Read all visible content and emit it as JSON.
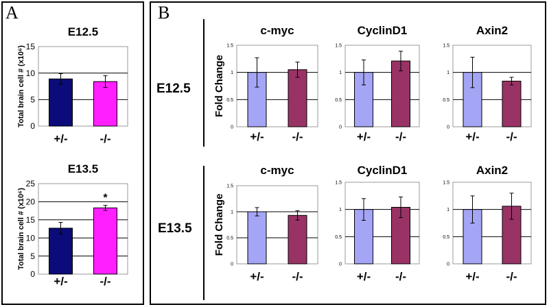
{
  "panels": {
    "a_label": "A",
    "b_label": "B"
  },
  "rows": {
    "r1": "E12.5",
    "r2": "E13.5"
  },
  "colors": {
    "het_a": "#0b0b7a",
    "ko_a": "#ff1fff",
    "het_b": "#a5a5f5",
    "ko_b": "#993366",
    "grid": "#000000",
    "frame": "#999999",
    "error_bar": "#000000"
  },
  "chart_data": [
    {
      "panel": "A",
      "type": "bar",
      "title": "E12.5",
      "ylabel": "Total brain cell # (x10⁶)",
      "categories": [
        "+/-",
        "-/-"
      ],
      "values": [
        8.9,
        8.4
      ],
      "errors": [
        1.0,
        1.1
      ],
      "ylim": [
        0,
        15
      ],
      "yticks": [
        0,
        5,
        10,
        15
      ],
      "grid": true,
      "colors": [
        "#0b0b7a",
        "#ff1fff"
      ]
    },
    {
      "panel": "A",
      "type": "bar",
      "title": "E13.5",
      "ylabel": "Total brain cell # (x10⁶)",
      "categories": [
        "+/-",
        "-/-"
      ],
      "values": [
        12.7,
        18.3
      ],
      "errors": [
        1.6,
        0.7
      ],
      "ylim": [
        0,
        25
      ],
      "yticks": [
        0,
        5,
        10,
        15,
        20,
        25
      ],
      "grid": true,
      "annotation": "*",
      "colors": [
        "#0b0b7a",
        "#ff1fff"
      ]
    },
    {
      "panel": "B",
      "row": "E12.5",
      "type": "bar",
      "title": "c-myc",
      "ylabel": "Fold Change",
      "categories": [
        "+/-",
        "-/-"
      ],
      "values": [
        1.0,
        1.05
      ],
      "errors": [
        0.27,
        0.14
      ],
      "ylim": [
        0,
        1.5
      ],
      "yticks": [
        "0",
        "0.5",
        "1",
        "1.5"
      ],
      "grid": true,
      "colors": [
        "#a5a5f5",
        "#993366"
      ]
    },
    {
      "panel": "B",
      "row": "E12.5",
      "type": "bar",
      "title": "CyclinD1",
      "categories": [
        "+/-",
        "-/-"
      ],
      "values": [
        1.0,
        1.21
      ],
      "errors": [
        0.23,
        0.18
      ],
      "ylim": [
        0,
        1.5
      ],
      "yticks": [
        "0",
        "0.5",
        "1",
        "1.5"
      ],
      "grid": true,
      "colors": [
        "#a5a5f5",
        "#993366"
      ]
    },
    {
      "panel": "B",
      "row": "E12.5",
      "type": "bar",
      "title": "Axin2",
      "categories": [
        "+/-",
        "-/-"
      ],
      "values": [
        1.0,
        0.84
      ],
      "errors": [
        0.28,
        0.07
      ],
      "ylim": [
        0,
        1.5
      ],
      "yticks": [
        "0",
        "0.5",
        "1",
        "1.5"
      ],
      "grid": true,
      "colors": [
        "#a5a5f5",
        "#993366"
      ]
    },
    {
      "panel": "B",
      "row": "E13.5",
      "type": "bar",
      "title": "c-myc",
      "ylabel": "Fold Change",
      "categories": [
        "+/-",
        "-/-"
      ],
      "values": [
        1.0,
        0.93
      ],
      "errors": [
        0.08,
        0.09
      ],
      "ylim": [
        0,
        1.5
      ],
      "yticks": [
        "0",
        "0.5",
        "1",
        "1.5"
      ],
      "grid": true,
      "colors": [
        "#a5a5f5",
        "#993366"
      ]
    },
    {
      "panel": "B",
      "row": "E13.5",
      "type": "bar",
      "title": "CyclinD1",
      "categories": [
        "+/-",
        "-/-"
      ],
      "values": [
        1.0,
        1.04
      ],
      "errors": [
        0.2,
        0.19
      ],
      "ylim": [
        0,
        1.5
      ],
      "yticks": [
        "0",
        "0.5",
        "1",
        "1.5"
      ],
      "grid": true,
      "colors": [
        "#a5a5f5",
        "#993366"
      ]
    },
    {
      "panel": "B",
      "row": "E13.5",
      "type": "bar",
      "title": "Axin2",
      "categories": [
        "+/-",
        "-/-"
      ],
      "values": [
        1.0,
        1.06
      ],
      "errors": [
        0.25,
        0.24
      ],
      "ylim": [
        0,
        1.5
      ],
      "yticks": [
        "0",
        "0.5",
        "1",
        "1.5"
      ],
      "grid": true,
      "colors": [
        "#a5a5f5",
        "#993366"
      ]
    }
  ]
}
